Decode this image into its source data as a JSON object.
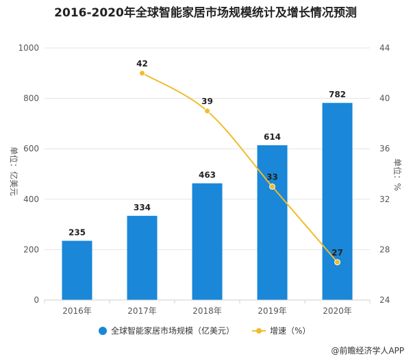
{
  "chart_data": {
    "type": "bar",
    "title": "2016-2020年全球智能家居市场规模统计及增长情况预测",
    "categories": [
      "2016年",
      "2017年",
      "2018年",
      "2019年",
      "2020年"
    ],
    "series": [
      {
        "name": "全球智能家居市场规模（亿美元）",
        "type": "bar",
        "axis": "left",
        "values": [
          235,
          334,
          463,
          614,
          782
        ],
        "color": "#1a87d8"
      },
      {
        "name": "增速（%）",
        "type": "line",
        "axis": "right",
        "values": [
          null,
          42,
          39,
          33,
          27
        ],
        "color": "#f0bc2c"
      }
    ],
    "ylabel": "单位：亿美元",
    "ylabel_right": "单位：%",
    "ylim": [
      0,
      1000
    ],
    "ylim_right": [
      24,
      44
    ],
    "yticks": [
      "0",
      "200",
      "400",
      "600",
      "800",
      "1000"
    ],
    "yticks_right": [
      "24",
      "28",
      "32",
      "36",
      "40",
      "44"
    ],
    "grid": true,
    "legend_position": "bottom"
  },
  "source": "@前瞻经济学人APP"
}
